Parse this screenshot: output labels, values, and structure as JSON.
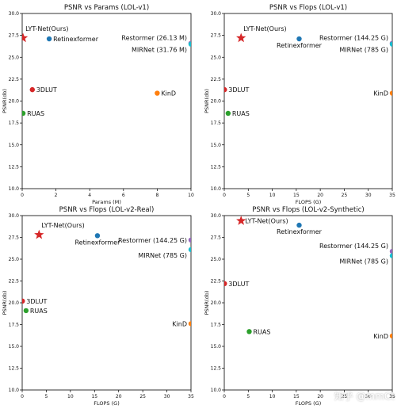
{
  "watermark": "知乎 @mmCt",
  "colors": {
    "lyt": "#d62728",
    "retinexformer": "#1f77b4",
    "restormer": "#9467bd",
    "mirnet": "#17becf",
    "kind": "#ff7f0e",
    "threedlut": "#d62728",
    "ruas": "#2ca02c"
  },
  "chart_data": [
    {
      "type": "scatter",
      "title": "PSNR vs Params (LOL-v1)",
      "xlabel": "Params (M)",
      "ylabel": "PSNR(db)",
      "xlim": [
        0,
        10
      ],
      "ylim": [
        10,
        30
      ],
      "xticks": [
        "0",
        "2",
        "4",
        "6",
        "8",
        "10"
      ],
      "xtick_values": [
        0,
        2,
        4,
        6,
        8,
        10
      ],
      "yticks": [
        "10.0",
        "12.5",
        "15.0",
        "17.5",
        "20.0",
        "22.5",
        "25.0",
        "27.5",
        "30.0"
      ],
      "ytick_values": [
        10,
        12.5,
        15,
        17.5,
        20,
        22.5,
        25,
        27.5,
        30
      ],
      "grid": false,
      "points": [
        {
          "name": "LYT-Net(Ours)",
          "x": 0.05,
          "y": 27.2,
          "color_key": "lyt",
          "marker": "star",
          "label_dir": "above-right"
        },
        {
          "name": "Retinexformer",
          "x": 1.6,
          "y": 27.1,
          "color_key": "retinexformer",
          "marker": "circle",
          "label_dir": "right"
        },
        {
          "name": "Restormer (26.13 M)",
          "x": 10,
          "y": 26.6,
          "color_key": "restormer",
          "marker": "circle",
          "label_dir": "left-above"
        },
        {
          "name": "MIRNet (31.76 M)",
          "x": 10,
          "y": 26.5,
          "color_key": "mirnet",
          "marker": "circle",
          "label_dir": "left-below"
        },
        {
          "name": "3DLUT",
          "x": 0.6,
          "y": 21.3,
          "color_key": "threedlut",
          "marker": "circle",
          "label_dir": "right"
        },
        {
          "name": "KinD",
          "x": 8.0,
          "y": 20.9,
          "color_key": "kind",
          "marker": "circle",
          "label_dir": "right"
        },
        {
          "name": "RUAS",
          "x": 0.05,
          "y": 18.6,
          "color_key": "ruas",
          "marker": "circle",
          "label_dir": "right"
        }
      ]
    },
    {
      "type": "scatter",
      "title": "PSNR vs Flops (LOL-v1)",
      "xlabel": "FLOPS (G)",
      "ylabel": "PSNR(db)",
      "xlim": [
        0,
        35
      ],
      "ylim": [
        10,
        30
      ],
      "xticks": [
        "0",
        "5",
        "10",
        "15",
        "20",
        "25",
        "30",
        "35"
      ],
      "xtick_values": [
        0,
        5,
        10,
        15,
        20,
        25,
        30,
        35
      ],
      "yticks": [
        "10.0",
        "12.5",
        "15.0",
        "17.5",
        "20.0",
        "22.5",
        "25.0",
        "27.5",
        "30.0"
      ],
      "ytick_values": [
        10,
        12.5,
        15,
        17.5,
        20,
        22.5,
        25,
        27.5,
        30
      ],
      "grid": false,
      "points": [
        {
          "name": "LYT-Net(Ours)",
          "x": 3.5,
          "y": 27.2,
          "color_key": "lyt",
          "marker": "star",
          "label_dir": "above-right"
        },
        {
          "name": "Retinexformer",
          "x": 15.6,
          "y": 27.1,
          "color_key": "retinexformer",
          "marker": "circle",
          "label_dir": "below"
        },
        {
          "name": "Restormer (144.25 G)",
          "x": 35,
          "y": 26.6,
          "color_key": "restormer",
          "marker": "circle",
          "label_dir": "left-above"
        },
        {
          "name": "MIRNet (785 G)",
          "x": 35,
          "y": 26.5,
          "color_key": "mirnet",
          "marker": "circle",
          "label_dir": "left-below"
        },
        {
          "name": "3DLUT",
          "x": 0.05,
          "y": 21.3,
          "color_key": "threedlut",
          "marker": "circle",
          "label_dir": "right"
        },
        {
          "name": "KinD",
          "x": 35,
          "y": 20.9,
          "color_key": "kind",
          "marker": "circle",
          "label_dir": "left"
        },
        {
          "name": "RUAS",
          "x": 0.8,
          "y": 18.6,
          "color_key": "ruas",
          "marker": "circle",
          "label_dir": "right"
        }
      ]
    },
    {
      "type": "scatter",
      "title": "PSNR vs Flops (LOL-v2-Real)",
      "xlabel": "FLOPS (G)",
      "ylabel": "PSNR(db)",
      "xlim": [
        0,
        35
      ],
      "ylim": [
        10,
        30
      ],
      "xticks": [
        "0",
        "5",
        "10",
        "15",
        "20",
        "25",
        "30",
        "35"
      ],
      "xtick_values": [
        0,
        5,
        10,
        15,
        20,
        25,
        30,
        35
      ],
      "yticks": [
        "10.0",
        "12.5",
        "15.0",
        "17.5",
        "20.0",
        "22.5",
        "25.0",
        "27.5",
        "30.0"
      ],
      "ytick_values": [
        10,
        12.5,
        15,
        17.5,
        20,
        22.5,
        25,
        27.5,
        30
      ],
      "grid": false,
      "points": [
        {
          "name": "LYT-Net(Ours)",
          "x": 3.5,
          "y": 27.8,
          "color_key": "lyt",
          "marker": "star",
          "label_dir": "above-right"
        },
        {
          "name": "Retinexformer",
          "x": 15.6,
          "y": 27.7,
          "color_key": "retinexformer",
          "marker": "circle",
          "label_dir": "below"
        },
        {
          "name": "Restormer (144.25 G)",
          "x": 35,
          "y": 27.2,
          "color_key": "restormer",
          "marker": "circle",
          "label_dir": "left"
        },
        {
          "name": "MIRNet (785 G)",
          "x": 35,
          "y": 26.1,
          "color_key": "mirnet",
          "marker": "circle",
          "label_dir": "left-below"
        },
        {
          "name": "3DLUT",
          "x": 0.05,
          "y": 20.2,
          "color_key": "threedlut",
          "marker": "circle",
          "label_dir": "right"
        },
        {
          "name": "RUAS",
          "x": 0.8,
          "y": 19.1,
          "color_key": "ruas",
          "marker": "circle",
          "label_dir": "right"
        },
        {
          "name": "KinD",
          "x": 35,
          "y": 17.6,
          "color_key": "kind",
          "marker": "circle",
          "label_dir": "left"
        }
      ]
    },
    {
      "type": "scatter",
      "title": "PSNR vs Flops (LOL-v2-Synthetic)",
      "xlabel": "FLOPS (G)",
      "ylabel": "PSNR(db)",
      "xlim": [
        0,
        35
      ],
      "ylim": [
        10,
        30
      ],
      "xticks": [
        "0",
        "5",
        "10",
        "15",
        "20",
        "25",
        "30",
        "35"
      ],
      "xtick_values": [
        0,
        5,
        10,
        15,
        20,
        25,
        30,
        35
      ],
      "yticks": [
        "10.0",
        "12.5",
        "15.0",
        "17.5",
        "20.0",
        "22.5",
        "25.0",
        "27.5",
        "30.0"
      ],
      "ytick_values": [
        10,
        12.5,
        15,
        17.5,
        20,
        22.5,
        25,
        27.5,
        30
      ],
      "grid": false,
      "points": [
        {
          "name": "LYT-Net(Ours)",
          "x": 3.5,
          "y": 29.4,
          "color_key": "lyt",
          "marker": "star",
          "label_dir": "right"
        },
        {
          "name": "Retinexformer",
          "x": 15.6,
          "y": 28.9,
          "color_key": "retinexformer",
          "marker": "circle",
          "label_dir": "below"
        },
        {
          "name": "Restormer (144.25 G)",
          "x": 35,
          "y": 25.9,
          "color_key": "restormer",
          "marker": "circle",
          "label_dir": "left-above"
        },
        {
          "name": "MIRNet (785 G)",
          "x": 35,
          "y": 25.4,
          "color_key": "mirnet",
          "marker": "circle",
          "label_dir": "left-below"
        },
        {
          "name": "3DLUT",
          "x": 0.05,
          "y": 22.2,
          "color_key": "threedlut",
          "marker": "circle",
          "label_dir": "right"
        },
        {
          "name": "RUAS",
          "x": 5.2,
          "y": 16.7,
          "color_key": "ruas",
          "marker": "circle",
          "label_dir": "right"
        },
        {
          "name": "KinD",
          "x": 35,
          "y": 16.2,
          "color_key": "kind",
          "marker": "circle",
          "label_dir": "left"
        }
      ]
    }
  ]
}
